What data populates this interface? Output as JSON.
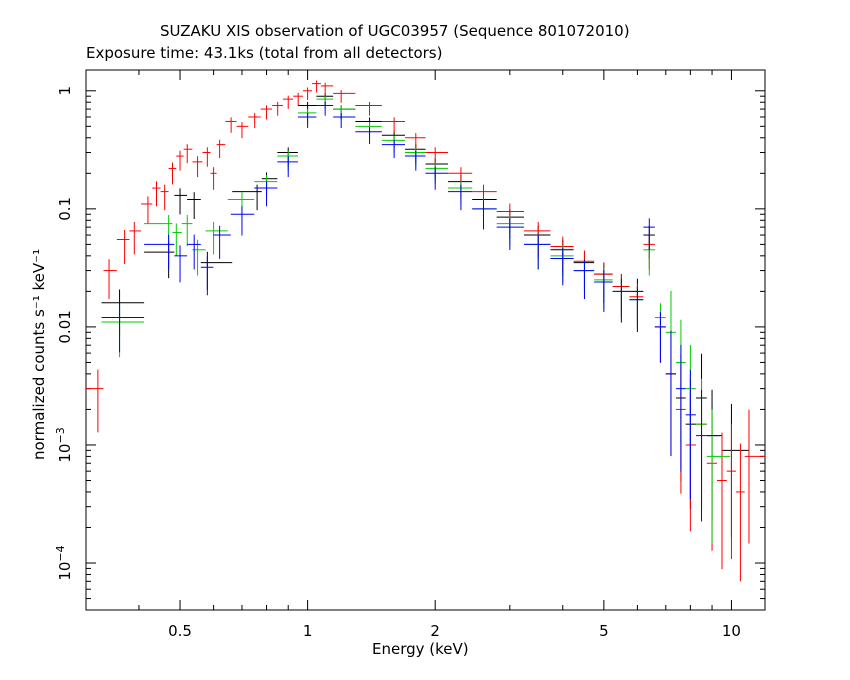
{
  "chart_data": {
    "type": "scatter",
    "title": "SUZAKU XIS observation of UGC03957 (Sequence 801072010)",
    "subtitle": "Exposure time: 43.1ks (total from all detectors)",
    "xlabel": "Energy (keV)",
    "ylabel": "normalized counts s⁻¹ keV⁻¹",
    "xscale": "log",
    "yscale": "log",
    "xlim": [
      0.3,
      12
    ],
    "ylim": [
      4e-05,
      1.5
    ],
    "xticks": [
      {
        "value": 0.5,
        "label": "0.5"
      },
      {
        "value": 1,
        "label": "1"
      },
      {
        "value": 2,
        "label": "2"
      },
      {
        "value": 5,
        "label": "5"
      },
      {
        "value": 10,
        "label": "10"
      }
    ],
    "yticks": [
      {
        "value": 1,
        "label": "1",
        "sup": ""
      },
      {
        "value": 0.1,
        "label": "0.1",
        "sup": ""
      },
      {
        "value": 0.01,
        "label": "0.01",
        "sup": ""
      },
      {
        "value": 0.001,
        "label": "10",
        "sup": "−3"
      },
      {
        "value": 0.0001,
        "label": "10",
        "sup": "−4"
      }
    ],
    "grid": false,
    "legend": "none",
    "series": [
      {
        "color": "#000000",
        "points": [
          [
            0.36,
            0.016
          ],
          [
            0.47,
            0.043
          ],
          [
            0.5,
            0.13
          ],
          [
            0.54,
            0.12
          ],
          [
            0.58,
            0.035
          ],
          [
            0.76,
            0.14
          ],
          [
            0.8,
            0.18
          ],
          [
            0.9,
            0.3
          ],
          [
            1.0,
            0.75
          ],
          [
            1.1,
            0.9
          ],
          [
            1.2,
            0.7
          ],
          [
            1.4,
            0.55
          ],
          [
            1.6,
            0.42
          ],
          [
            1.8,
            0.32
          ],
          [
            2.0,
            0.24
          ],
          [
            2.3,
            0.17
          ],
          [
            2.6,
            0.12
          ],
          [
            3.0,
            0.085
          ],
          [
            3.5,
            0.06
          ],
          [
            4.0,
            0.045
          ],
          [
            4.5,
            0.035
          ],
          [
            5.0,
            0.028
          ],
          [
            5.5,
            0.022
          ],
          [
            6.0,
            0.02
          ],
          [
            6.4,
            0.06
          ],
          [
            6.8,
            0.01
          ],
          [
            7.2,
            0.004
          ],
          [
            7.6,
            0.0025
          ],
          [
            8.0,
            0.0015
          ],
          [
            8.5,
            0.0025
          ],
          [
            9.0,
            0.0012
          ],
          [
            10.0,
            0.0009
          ]
        ]
      },
      {
        "color": "#ff0000",
        "points": [
          [
            0.32,
            0.003
          ],
          [
            0.34,
            0.03
          ],
          [
            0.37,
            0.055
          ],
          [
            0.39,
            0.065
          ],
          [
            0.42,
            0.11
          ],
          [
            0.44,
            0.15
          ],
          [
            0.46,
            0.14
          ],
          [
            0.48,
            0.22
          ],
          [
            0.5,
            0.28
          ],
          [
            0.52,
            0.32
          ],
          [
            0.55,
            0.25
          ],
          [
            0.58,
            0.3
          ],
          [
            0.6,
            0.2
          ],
          [
            0.62,
            0.35
          ],
          [
            0.66,
            0.55
          ],
          [
            0.7,
            0.5
          ],
          [
            0.75,
            0.6
          ],
          [
            0.8,
            0.7
          ],
          [
            0.85,
            0.75
          ],
          [
            0.9,
            0.85
          ],
          [
            0.95,
            0.9
          ],
          [
            1.0,
            1.0
          ],
          [
            1.05,
            1.15
          ],
          [
            1.1,
            1.1
          ],
          [
            1.2,
            0.95
          ],
          [
            1.4,
            0.75
          ],
          [
            1.6,
            0.55
          ],
          [
            1.8,
            0.4
          ],
          [
            2.0,
            0.3
          ],
          [
            2.3,
            0.2
          ],
          [
            2.6,
            0.14
          ],
          [
            3.0,
            0.095
          ],
          [
            3.5,
            0.065
          ],
          [
            4.0,
            0.048
          ],
          [
            4.5,
            0.036
          ],
          [
            5.0,
            0.028
          ],
          [
            5.5,
            0.022
          ],
          [
            6.0,
            0.018
          ],
          [
            6.4,
            0.05
          ],
          [
            6.8,
            0.01
          ],
          [
            7.2,
            0.004
          ],
          [
            7.6,
            0.002
          ],
          [
            8.0,
            0.001
          ],
          [
            8.5,
            0.0015
          ],
          [
            9.0,
            0.0007
          ],
          [
            9.5,
            0.0005
          ],
          [
            10.0,
            0.0006
          ],
          [
            10.5,
            0.0004
          ],
          [
            11.0,
            0.0008
          ]
        ]
      },
      {
        "color": "#00cc00",
        "points": [
          [
            0.36,
            0.011
          ],
          [
            0.47,
            0.075
          ],
          [
            0.49,
            0.063
          ],
          [
            0.52,
            0.075
          ],
          [
            0.55,
            0.045
          ],
          [
            0.6,
            0.065
          ],
          [
            0.7,
            0.12
          ],
          [
            0.8,
            0.17
          ],
          [
            0.9,
            0.28
          ],
          [
            1.0,
            0.65
          ],
          [
            1.1,
            0.85
          ],
          [
            1.2,
            0.7
          ],
          [
            1.4,
            0.5
          ],
          [
            1.6,
            0.38
          ],
          [
            1.8,
            0.3
          ],
          [
            2.0,
            0.22
          ],
          [
            2.3,
            0.15
          ],
          [
            2.6,
            0.1
          ],
          [
            3.0,
            0.075
          ],
          [
            3.5,
            0.05
          ],
          [
            4.0,
            0.04
          ],
          [
            4.5,
            0.03
          ],
          [
            5.0,
            0.025
          ],
          [
            5.5,
            0.02
          ],
          [
            6.0,
            0.017
          ],
          [
            6.4,
            0.045
          ],
          [
            6.8,
            0.012
          ],
          [
            7.2,
            0.009
          ],
          [
            7.6,
            0.005
          ],
          [
            8.0,
            0.003
          ],
          [
            8.5,
            0.0015
          ],
          [
            9.0,
            0.0008
          ]
        ]
      },
      {
        "color": "#0000ff",
        "points": [
          [
            0.36,
            0.012
          ],
          [
            0.47,
            0.05
          ],
          [
            0.5,
            0.04
          ],
          [
            0.54,
            0.05
          ],
          [
            0.58,
            0.032
          ],
          [
            0.62,
            0.06
          ],
          [
            0.7,
            0.09
          ],
          [
            0.8,
            0.15
          ],
          [
            0.9,
            0.25
          ],
          [
            1.0,
            0.6
          ],
          [
            1.1,
            0.75
          ],
          [
            1.2,
            0.6
          ],
          [
            1.4,
            0.45
          ],
          [
            1.6,
            0.35
          ],
          [
            1.8,
            0.28
          ],
          [
            2.0,
            0.2
          ],
          [
            2.3,
            0.14
          ],
          [
            2.6,
            0.1
          ],
          [
            3.0,
            0.07
          ],
          [
            3.5,
            0.05
          ],
          [
            4.0,
            0.038
          ],
          [
            4.5,
            0.03
          ],
          [
            5.0,
            0.024
          ],
          [
            5.5,
            0.02
          ],
          [
            6.0,
            0.017
          ],
          [
            6.4,
            0.07
          ],
          [
            6.8,
            0.01
          ],
          [
            7.2,
            0.004
          ],
          [
            7.6,
            0.003
          ],
          [
            8.0,
            0.0018
          ],
          [
            8.5,
            0.0012
          ]
        ]
      }
    ]
  }
}
